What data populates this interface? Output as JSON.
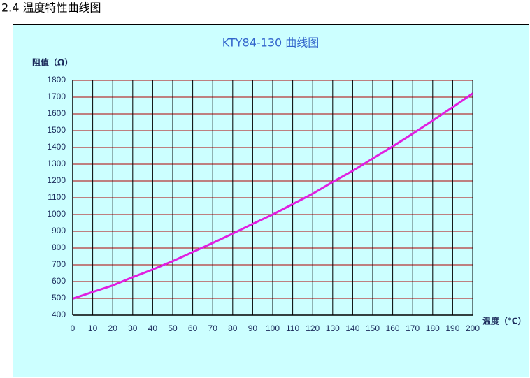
{
  "heading": "2.4 温度特性曲线图",
  "chart_data": {
    "type": "line",
    "title": "KTY84-130 曲线图",
    "y_label": "阻值（Ω）",
    "x_label": "温度（℃）",
    "x": [
      0,
      10,
      20,
      30,
      40,
      50,
      60,
      70,
      80,
      90,
      100,
      110,
      120,
      130,
      140,
      150,
      160,
      170,
      180,
      190,
      200
    ],
    "values": [
      498,
      538,
      577,
      626,
      672,
      722,
      776,
      830,
      886,
      944,
      1000,
      1062,
      1124,
      1194,
      1260,
      1334,
      1406,
      1482,
      1560,
      1640,
      1722
    ],
    "color": "#e020e0",
    "xlim": [
      0,
      200
    ],
    "xticks": [
      0,
      10,
      20,
      30,
      40,
      50,
      60,
      70,
      80,
      90,
      100,
      110,
      120,
      130,
      140,
      150,
      160,
      170,
      180,
      190,
      200
    ],
    "ylim": [
      400,
      1800
    ],
    "yticks": [
      400,
      500,
      600,
      700,
      800,
      900,
      1000,
      1100,
      1200,
      1300,
      1400,
      1500,
      1600,
      1700,
      1800
    ],
    "grid": true
  }
}
